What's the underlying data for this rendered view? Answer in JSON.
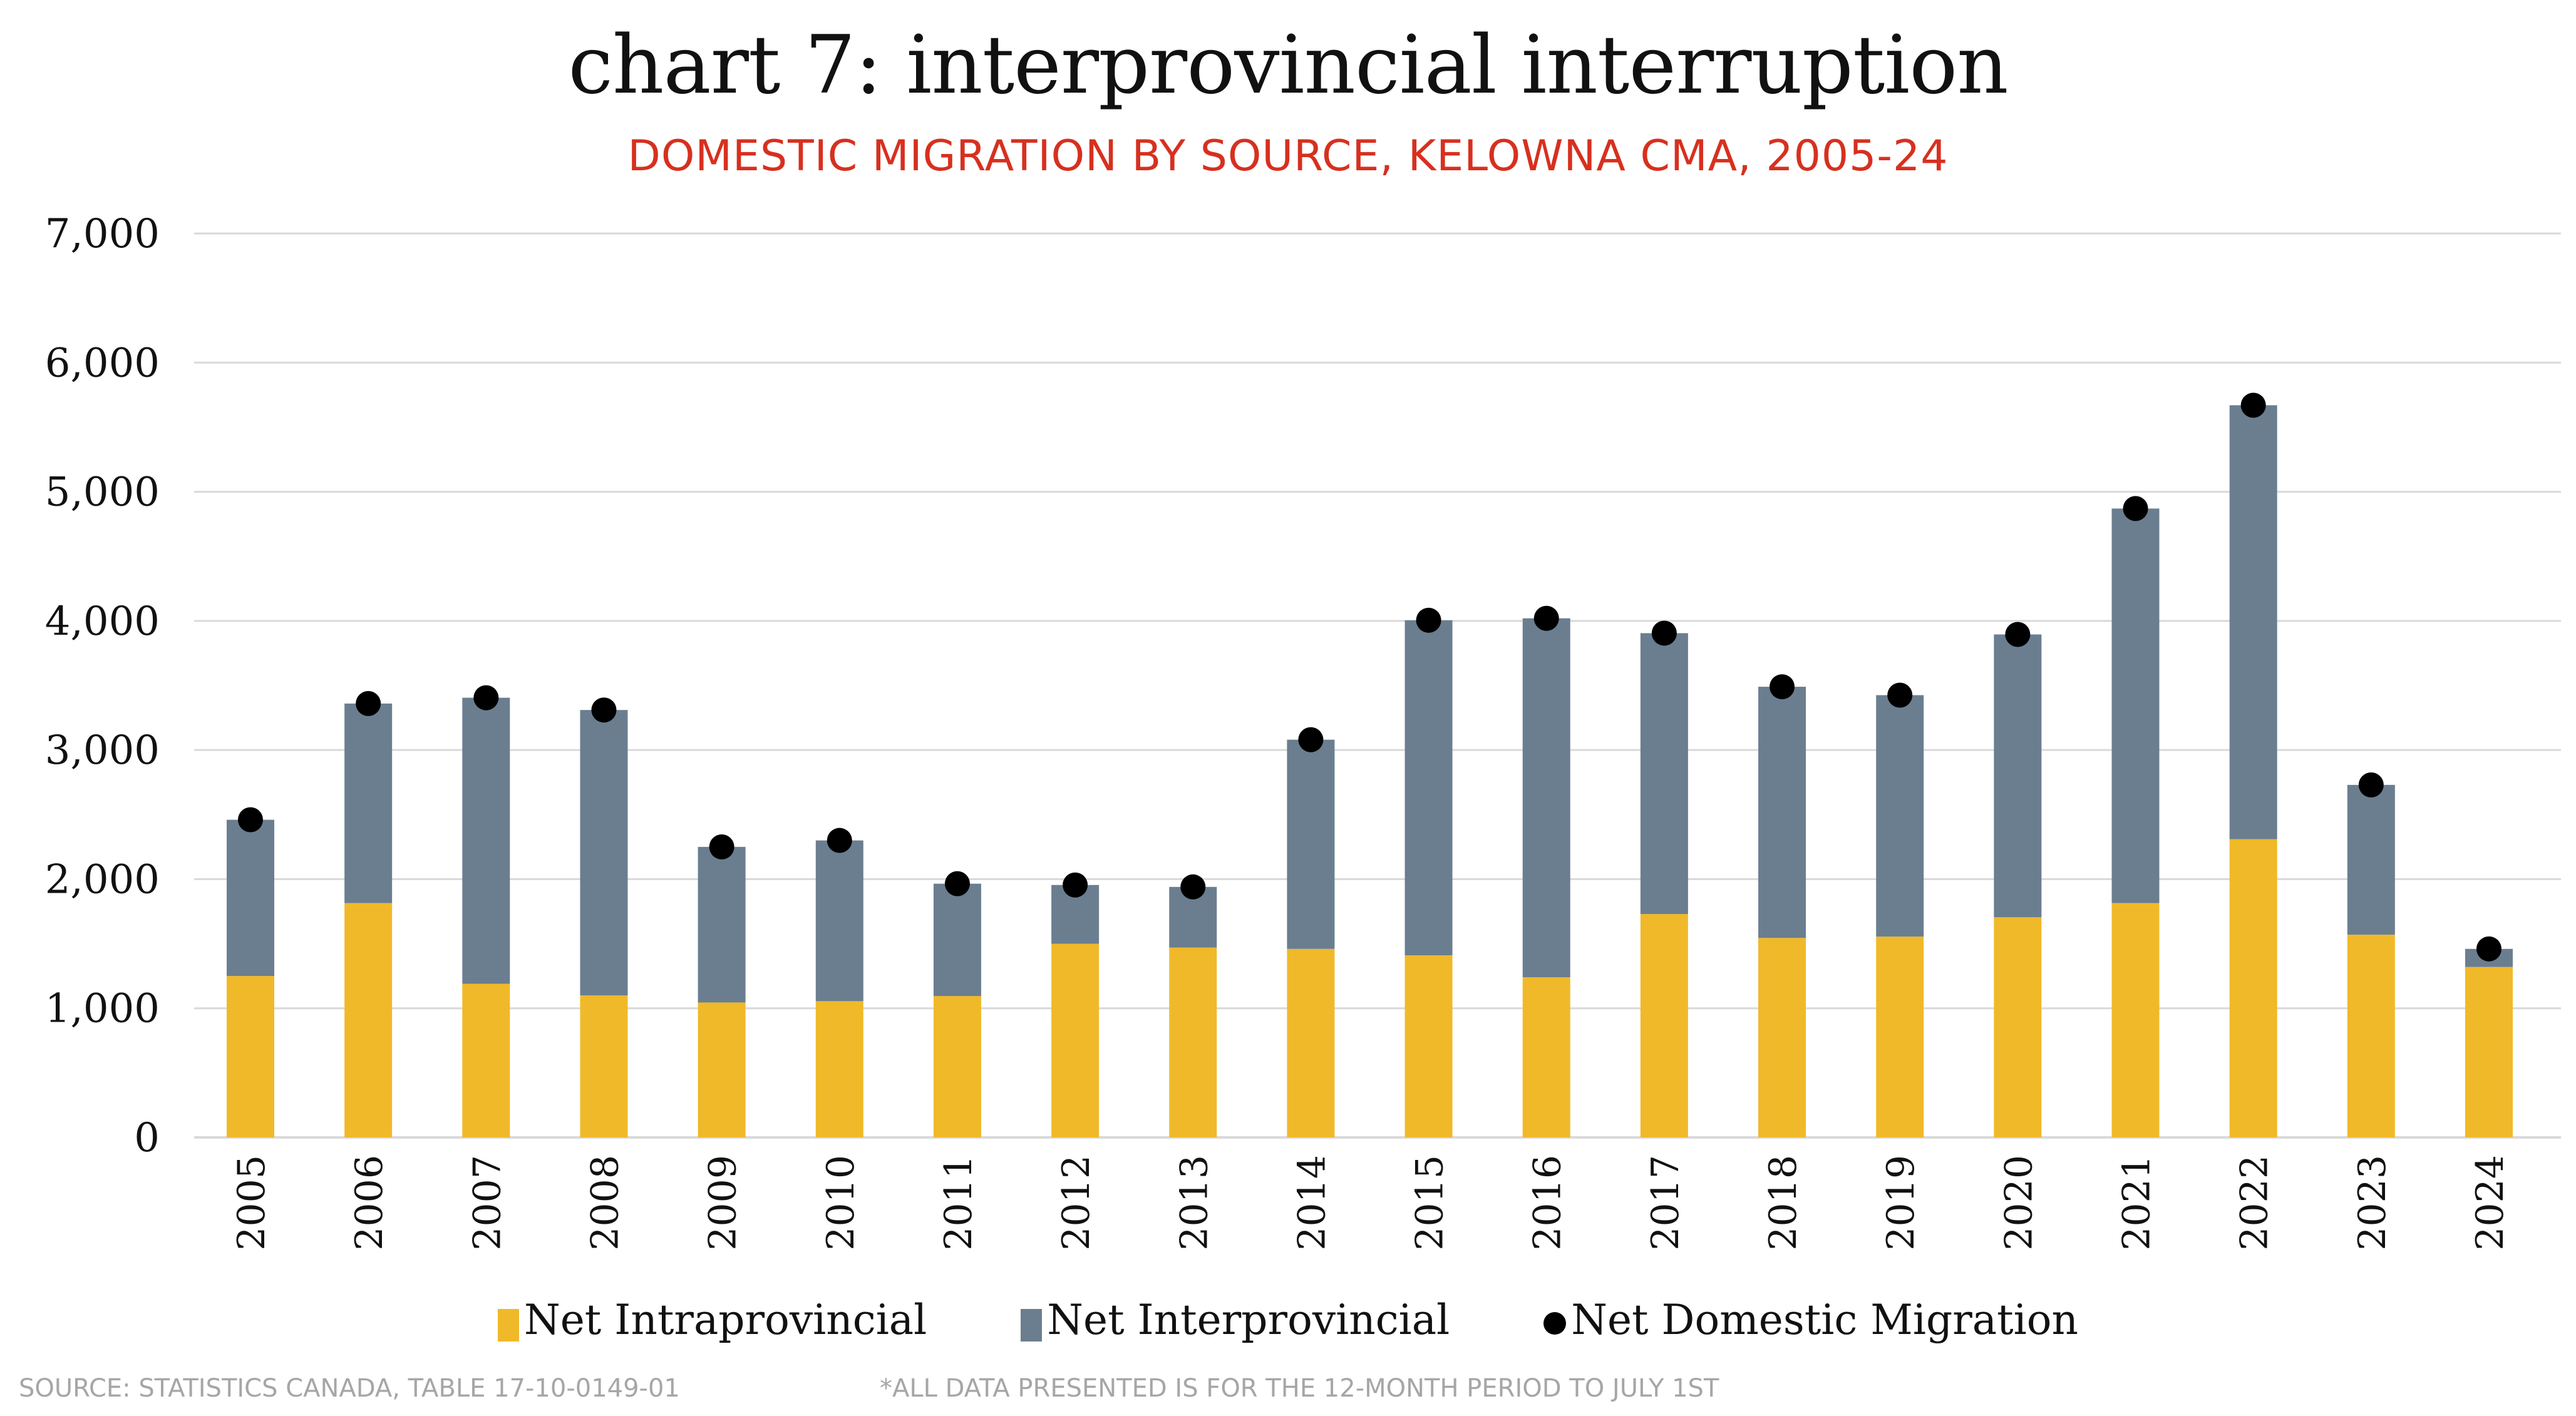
{
  "chart_data": {
    "type": "bar",
    "stacked": true,
    "title": "chart 7: interprovincial interruption",
    "subtitle": "DOMESTIC MIGRATION BY SOURCE, KELOWNA CMA, 2005-24",
    "xlabel": "",
    "ylabel": "",
    "ylim": [
      0,
      7000
    ],
    "yticks": [
      0,
      1000,
      2000,
      3000,
      4000,
      5000,
      6000,
      7000
    ],
    "ytick_labels": [
      "0",
      "1,000",
      "2,000",
      "3,000",
      "4,000",
      "5,000",
      "6,000",
      "7,000"
    ],
    "grid": true,
    "categories": [
      "2005",
      "2006",
      "2007",
      "2008",
      "2009",
      "2010",
      "2011",
      "2012",
      "2013",
      "2014",
      "2015",
      "2016",
      "2017",
      "2018",
      "2019",
      "2020",
      "2021",
      "2022",
      "2023",
      "2024"
    ],
    "series": [
      {
        "name": "Net Intraprovincial",
        "kind": "bar",
        "color": "#f0b929",
        "values": [
          1250,
          1815,
          1190,
          1100,
          1045,
          1055,
          1095,
          1500,
          1470,
          1460,
          1410,
          1240,
          1730,
          1545,
          1555,
          1705,
          1815,
          2310,
          1570,
          1320
        ]
      },
      {
        "name": "Net Interprovincial",
        "kind": "bar",
        "color": "#6a7e90",
        "values": [
          1210,
          1545,
          2215,
          2210,
          1205,
          1245,
          870,
          455,
          470,
          1620,
          2595,
          2780,
          2175,
          1945,
          1870,
          2190,
          3055,
          3360,
          1160,
          140
        ]
      },
      {
        "name": "Net Domestic Migration",
        "kind": "scatter",
        "color": "#000000",
        "values": [
          2460,
          3360,
          3405,
          3310,
          2250,
          2300,
          1965,
          1955,
          1940,
          3080,
          4005,
          4020,
          3905,
          3490,
          3425,
          3895,
          4870,
          5670,
          2730,
          1460
        ]
      }
    ],
    "legend_position": "bottom-center"
  },
  "footer": {
    "source": "SOURCE: STATISTICS CANADA, TABLE 17-10-0149-01",
    "note": "*ALL DATA PRESENTED IS FOR THE 12-MONTH PERIOD TO JULY 1ST"
  }
}
